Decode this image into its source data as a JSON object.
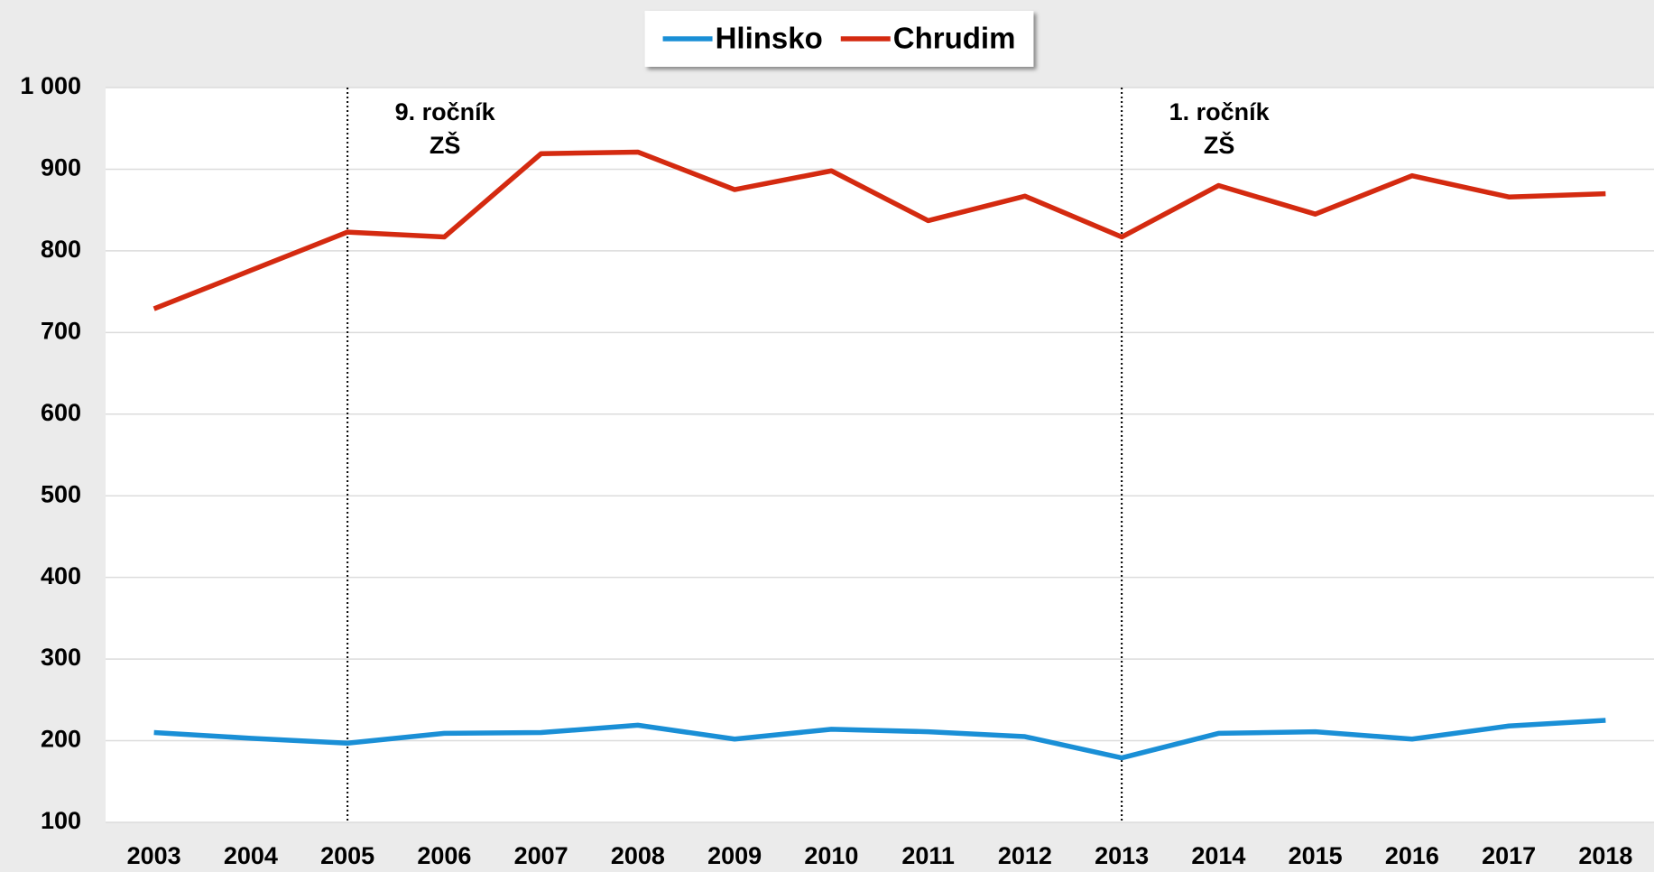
{
  "chart_data": {
    "type": "line",
    "categories": [
      "2003",
      "2004",
      "2005",
      "2006",
      "2007",
      "2008",
      "2009",
      "2010",
      "2011",
      "2012",
      "2013",
      "2014",
      "2015",
      "2016",
      "2017",
      "2018"
    ],
    "series": [
      {
        "name": "Hlinsko",
        "color": "#1a8fd6",
        "values": [
          210,
          203,
          197,
          209,
          210,
          219,
          202,
          214,
          211,
          205,
          179,
          209,
          211,
          202,
          218,
          225
        ]
      },
      {
        "name": "Chrudim",
        "color": "#d42a10",
        "values": [
          729,
          776,
          823,
          817,
          919,
          921,
          875,
          898,
          837,
          867,
          817,
          880,
          845,
          892,
          866,
          870
        ]
      }
    ],
    "ylim": [
      100,
      1000
    ],
    "yticks": [
      100,
      200,
      300,
      400,
      500,
      600,
      700,
      800,
      900,
      {
        "value": 1000,
        "label": "1 000"
      }
    ],
    "grid": true,
    "legend": "top",
    "annotations": [
      {
        "at": "2005",
        "lines": [
          "9. ročník",
          "ZŠ"
        ]
      },
      {
        "at": "2013",
        "lines": [
          "1. ročník",
          "ZŠ"
        ]
      }
    ]
  }
}
